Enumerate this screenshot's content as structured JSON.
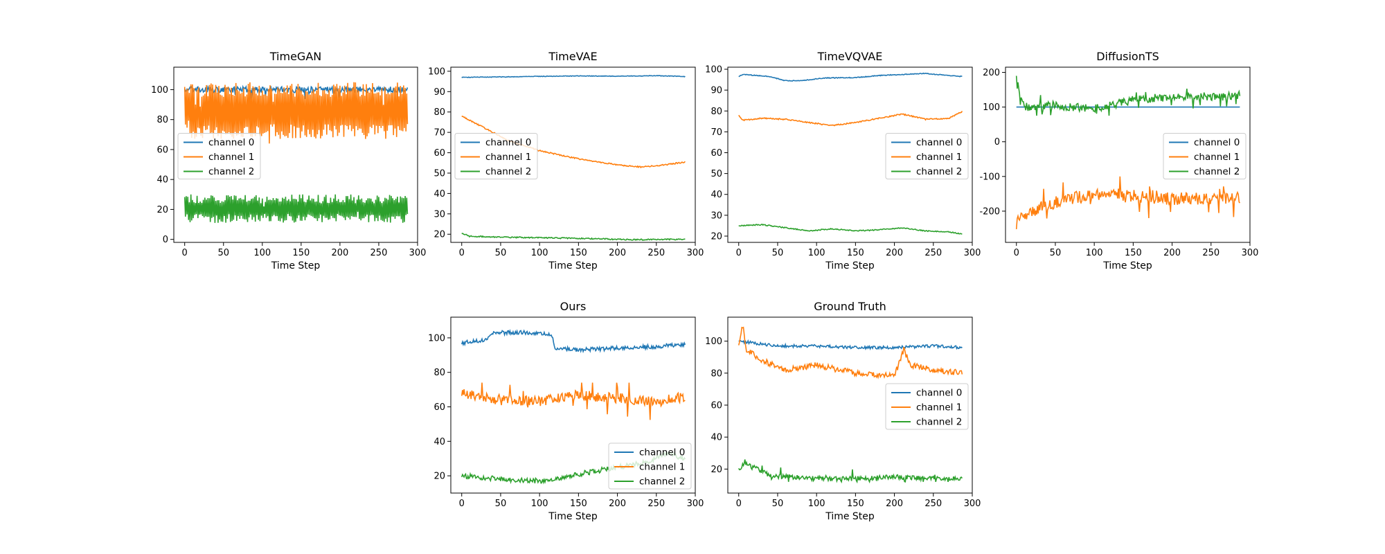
{
  "figure": {
    "colors": {
      "channel 0": "#1f77b4",
      "channel 1": "#ff7f0e",
      "channel 2": "#2ca02c"
    }
  },
  "chart_data": [
    {
      "type": "line",
      "title": "TimeGAN",
      "xlabel": "Time Step",
      "ylabel": "",
      "xlim": [
        -14,
        300
      ],
      "ylim": [
        -2,
        115
      ],
      "xticks": [
        0,
        50,
        100,
        150,
        200,
        250,
        300
      ],
      "yticks": [
        0,
        20,
        40,
        60,
        80,
        100
      ],
      "legend": "center-left",
      "grid": false,
      "series": [
        {
          "name": "channel 0",
          "generator": "noise",
          "n": 288,
          "base": 100,
          "amp": 2,
          "min": 90,
          "max": 102
        },
        {
          "name": "channel 1",
          "generator": "oscillate",
          "n": 288,
          "hi": 100,
          "lo": 72,
          "jitter": 5,
          "min": 64,
          "max": 110
        },
        {
          "name": "channel 2",
          "generator": "oscillate",
          "n": 288,
          "hi": 27,
          "lo": 14,
          "jitter": 3,
          "min": 3,
          "max": 30
        }
      ]
    },
    {
      "type": "line",
      "title": "TimeVAE",
      "xlabel": "Time Step",
      "ylabel": "",
      "xlim": [
        -14,
        300
      ],
      "ylim": [
        16,
        102
      ],
      "xticks": [
        0,
        50,
        100,
        150,
        200,
        250,
        300
      ],
      "yticks": [
        20,
        30,
        40,
        50,
        60,
        70,
        80,
        90,
        100
      ],
      "legend": "center-left",
      "grid": false,
      "series": [
        {
          "name": "channel 0",
          "generator": "smooth",
          "n": 288,
          "keys": [
            [
              0,
              97
            ],
            [
              50,
              97.2
            ],
            [
              100,
              97.5
            ],
            [
              150,
              97.7
            ],
            [
              200,
              97.6
            ],
            [
              250,
              97.8
            ],
            [
              288,
              97.4
            ]
          ],
          "noise": 0.15
        },
        {
          "name": "channel 1",
          "generator": "smooth",
          "n": 288,
          "keys": [
            [
              0,
              78
            ],
            [
              10,
              76
            ],
            [
              30,
              72
            ],
            [
              60,
              66
            ],
            [
              100,
              61
            ],
            [
              150,
              57
            ],
            [
              200,
              54
            ],
            [
              230,
              53
            ],
            [
              260,
              54
            ],
            [
              288,
              55.5
            ]
          ],
          "noise": 0.3
        },
        {
          "name": "channel 2",
          "generator": "smooth",
          "n": 288,
          "keys": [
            [
              0,
              20.5
            ],
            [
              10,
              19
            ],
            [
              60,
              18.5
            ],
            [
              150,
              18
            ],
            [
              220,
              17.3
            ],
            [
              288,
              17.5
            ]
          ],
          "noise": 0.3
        }
      ]
    },
    {
      "type": "line",
      "title": "TimeVQVAE",
      "xlabel": "Time Step",
      "ylabel": "",
      "xlim": [
        -14,
        300
      ],
      "ylim": [
        17,
        101
      ],
      "xticks": [
        0,
        50,
        100,
        150,
        200,
        250,
        300
      ],
      "yticks": [
        20,
        30,
        40,
        50,
        60,
        70,
        80,
        90,
        100
      ],
      "legend": "center-right",
      "grid": false,
      "series": [
        {
          "name": "channel 0",
          "generator": "smooth",
          "n": 288,
          "keys": [
            [
              0,
              96.5
            ],
            [
              5,
              97.5
            ],
            [
              40,
              96.5
            ],
            [
              60,
              94.5
            ],
            [
              80,
              94.5
            ],
            [
              110,
              95.8
            ],
            [
              150,
              96
            ],
            [
              180,
              97
            ],
            [
              210,
              97.5
            ],
            [
              240,
              98
            ],
            [
              270,
              97
            ],
            [
              288,
              96.5
            ]
          ],
          "noise": 0.2
        },
        {
          "name": "channel 1",
          "generator": "smooth",
          "n": 288,
          "keys": [
            [
              0,
              78
            ],
            [
              5,
              75.5
            ],
            [
              30,
              76.5
            ],
            [
              60,
              76
            ],
            [
              90,
              74.5
            ],
            [
              120,
              73
            ],
            [
              150,
              74.5
            ],
            [
              180,
              76.5
            ],
            [
              210,
              78.5
            ],
            [
              240,
              76
            ],
            [
              270,
              76.5
            ],
            [
              288,
              80
            ]
          ],
          "noise": 0.3
        },
        {
          "name": "channel 2",
          "generator": "smooth",
          "n": 288,
          "keys": [
            [
              0,
              25
            ],
            [
              30,
              25.5
            ],
            [
              60,
              24
            ],
            [
              90,
              22.5
            ],
            [
              120,
              23.5
            ],
            [
              150,
              22.5
            ],
            [
              180,
              23
            ],
            [
              210,
              24
            ],
            [
              240,
              22.5
            ],
            [
              270,
              22
            ],
            [
              288,
              21
            ]
          ],
          "noise": 0.25
        }
      ]
    },
    {
      "type": "line",
      "title": "DiffusionTS",
      "xlabel": "Time Step",
      "ylabel": "",
      "xlim": [
        -14,
        300
      ],
      "ylim": [
        -290,
        215
      ],
      "xticks": [
        0,
        50,
        100,
        150,
        200,
        250,
        300
      ],
      "yticks": [
        -200,
        -100,
        0,
        100,
        200
      ],
      "legend": "center-right",
      "grid": false,
      "series": [
        {
          "name": "channel 0",
          "generator": "smooth",
          "n": 288,
          "keys": [
            [
              0,
              100
            ],
            [
              288,
              100
            ]
          ],
          "noise": 0
        },
        {
          "name": "channel 1",
          "generator": "spiky",
          "n": 288,
          "keys": [
            [
              0,
              -220
            ],
            [
              20,
              -200
            ],
            [
              60,
              -165
            ],
            [
              120,
              -150
            ],
            [
              200,
              -165
            ],
            [
              288,
              -160
            ]
          ],
          "noise": 18,
          "spike": 55,
          "min": -265,
          "max": -100
        },
        {
          "name": "channel 2",
          "generator": "spiky",
          "n": 288,
          "keys": [
            [
              0,
              165
            ],
            [
              10,
              100
            ],
            [
              50,
              105
            ],
            [
              100,
              95
            ],
            [
              150,
              120
            ],
            [
              200,
              130
            ],
            [
              260,
              130
            ],
            [
              288,
              135
            ]
          ],
          "noise": 12,
          "spike": 35,
          "min": 75,
          "max": 190
        }
      ]
    },
    {
      "type": "line",
      "title": "Ours",
      "xlabel": "Time Step",
      "ylabel": "",
      "xlim": [
        -14,
        300
      ],
      "ylim": [
        10,
        112
      ],
      "xticks": [
        0,
        50,
        100,
        150,
        200,
        250,
        300
      ],
      "yticks": [
        20,
        40,
        60,
        80,
        100
      ],
      "legend": "lower-right",
      "grid": false,
      "series": [
        {
          "name": "channel 0",
          "generator": "smooth",
          "n": 288,
          "keys": [
            [
              0,
              97
            ],
            [
              30,
              99
            ],
            [
              40,
              103
            ],
            [
              80,
              103
            ],
            [
              115,
              102
            ],
            [
              120,
              94
            ],
            [
              150,
              93
            ],
            [
              200,
              94
            ],
            [
              250,
              95
            ],
            [
              288,
              96
            ]
          ],
          "noise": 1.2
        },
        {
          "name": "channel 1",
          "generator": "spiky",
          "n": 288,
          "keys": [
            [
              0,
              68
            ],
            [
              50,
              64
            ],
            [
              100,
              63
            ],
            [
              150,
              67
            ],
            [
              200,
              65
            ],
            [
              250,
              63
            ],
            [
              288,
              66
            ]
          ],
          "noise": 3,
          "spike": 12,
          "min": 41,
          "max": 74
        },
        {
          "name": "channel 2",
          "generator": "smooth",
          "n": 288,
          "keys": [
            [
              0,
              20
            ],
            [
              50,
              18
            ],
            [
              100,
              17
            ],
            [
              150,
              21
            ],
            [
              200,
              25
            ],
            [
              240,
              28
            ],
            [
              262,
              33
            ],
            [
              288,
              30
            ]
          ],
          "noise": 1.5
        }
      ]
    },
    {
      "type": "line",
      "title": "Ground Truth",
      "xlabel": "Time Step",
      "ylabel": "",
      "xlim": [
        -14,
        300
      ],
      "ylim": [
        5,
        115
      ],
      "xticks": [
        0,
        50,
        100,
        150,
        200,
        250,
        300
      ],
      "yticks": [
        20,
        40,
        60,
        80,
        100
      ],
      "legend": "center-right",
      "grid": false,
      "series": [
        {
          "name": "channel 0",
          "generator": "smooth",
          "n": 288,
          "keys": [
            [
              0,
              100
            ],
            [
              50,
              97
            ],
            [
              100,
              97
            ],
            [
              150,
              96
            ],
            [
              200,
              96
            ],
            [
              250,
              97
            ],
            [
              288,
              96
            ]
          ],
          "noise": 0.9
        },
        {
          "name": "channel 1",
          "generator": "smooth",
          "n": 288,
          "keys": [
            [
              0,
              97
            ],
            [
              5,
              110
            ],
            [
              10,
              95
            ],
            [
              30,
              88
            ],
            [
              60,
              82
            ],
            [
              100,
              85
            ],
            [
              150,
              80
            ],
            [
              200,
              78
            ],
            [
              212,
              95
            ],
            [
              220,
              85
            ],
            [
              250,
              82
            ],
            [
              288,
              80
            ]
          ],
          "noise": 1.8
        },
        {
          "name": "channel 2",
          "generator": "spiky",
          "n": 288,
          "keys": [
            [
              0,
              20
            ],
            [
              10,
              24
            ],
            [
              40,
              16
            ],
            [
              100,
              14
            ],
            [
              150,
              14
            ],
            [
              200,
              15
            ],
            [
              250,
              14
            ],
            [
              288,
              14
            ]
          ],
          "noise": 1.5,
          "spike": 6,
          "min": 12,
          "max": 26
        }
      ]
    }
  ]
}
